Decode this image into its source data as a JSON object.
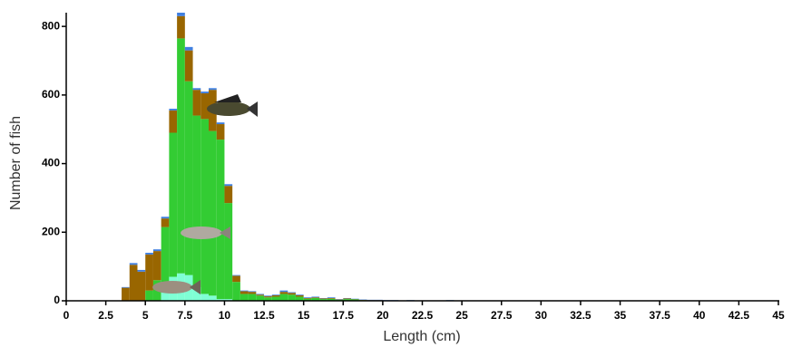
{
  "chart_data": {
    "type": "histogram",
    "x_label": "Length (cm)",
    "y_label": "Number of fish",
    "bins": [
      3.5,
      4,
      4.5,
      5,
      5.5,
      6,
      6.5,
      7,
      7.5,
      8,
      8.5,
      9,
      9.5,
      10,
      10.5,
      11,
      11.5,
      12,
      12.5,
      13,
      13.5,
      14,
      14.5,
      15,
      15.5,
      16,
      16.5,
      17,
      17.5,
      18,
      18.5,
      19,
      19.5,
      20,
      20.5,
      21,
      21.5,
      22,
      22.5,
      23,
      23.5,
      24,
      24.5,
      25,
      25.5,
      26
    ],
    "series": [
      {
        "color": "#7fffd4",
        "values": [
          0,
          0,
          0,
          0,
          0,
          25,
          70,
          80,
          75,
          40,
          20,
          15,
          5,
          5,
          0,
          0,
          0,
          0,
          0,
          0,
          0,
          0,
          0,
          0,
          0,
          0,
          0,
          0,
          0,
          0,
          0,
          0,
          0,
          0,
          0,
          0,
          0,
          0,
          0,
          0,
          0,
          0,
          0,
          0,
          0
        ]
      },
      {
        "color": "#33cc33",
        "values": [
          0,
          0,
          0,
          30,
          60,
          190,
          420,
          685,
          565,
          500,
          510,
          480,
          465,
          280,
          55,
          20,
          20,
          15,
          10,
          12,
          20,
          18,
          12,
          6,
          8,
          5,
          6,
          3,
          5,
          4,
          2,
          1,
          1,
          1,
          1,
          0,
          1,
          0,
          0,
          0,
          0,
          1,
          0,
          0,
          0
        ]
      },
      {
        "color": "#996600",
        "values": [
          38,
          105,
          85,
          105,
          85,
          25,
          65,
          65,
          90,
          75,
          75,
          120,
          45,
          50,
          18,
          8,
          6,
          3,
          3,
          4,
          6,
          5,
          4,
          2,
          2,
          2,
          2,
          1,
          2,
          1,
          1,
          1,
          1,
          0,
          0,
          0,
          0,
          0,
          0,
          0,
          0,
          0,
          0,
          0,
          0
        ]
      },
      {
        "color": "#3f7fe0",
        "values": [
          2,
          5,
          5,
          5,
          5,
          5,
          5,
          10,
          10,
          5,
          5,
          5,
          5,
          5,
          2,
          2,
          2,
          2,
          2,
          2,
          4,
          2,
          2,
          2,
          2,
          1,
          2,
          1,
          1,
          1,
          1,
          1,
          1,
          1,
          1,
          1,
          1,
          1,
          1,
          1,
          1,
          1,
          1,
          0,
          1
        ]
      }
    ],
    "xlim": [
      0,
      45
    ],
    "xticks": [
      0,
      2.5,
      5,
      7.5,
      10,
      12.5,
      15,
      17.5,
      20,
      22.5,
      25,
      27.5,
      30,
      32.5,
      35,
      37.5,
      40,
      42.5,
      45
    ],
    "ylim": [
      0,
      840
    ],
    "yticks": [
      0,
      200,
      400,
      600,
      800
    ]
  }
}
